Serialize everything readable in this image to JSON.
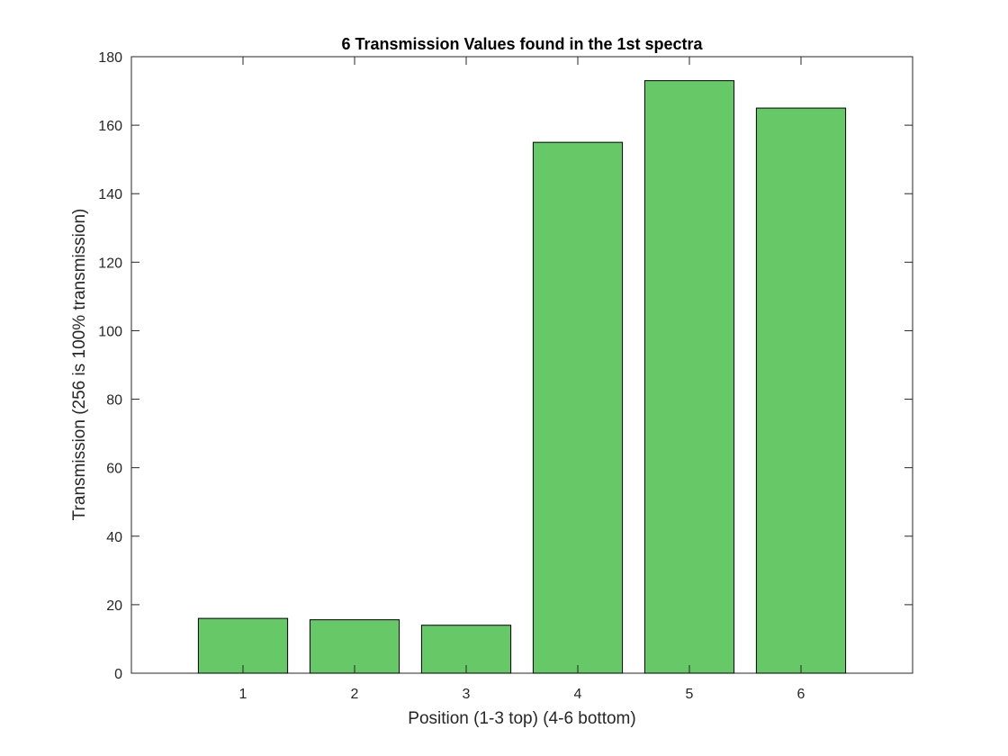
{
  "chart_data": {
    "type": "bar",
    "title": "6 Transmission Values found in the 1st spectra",
    "xlabel": "Position (1-3 top) (4-6 bottom)",
    "ylabel": "Transmission (256 is 100% transmission)",
    "categories": [
      "1",
      "2",
      "3",
      "4",
      "5",
      "6"
    ],
    "values": [
      16,
      15.6,
      14,
      155,
      173,
      165
    ],
    "ylim": [
      0,
      180
    ],
    "yticks": [
      "0",
      "20",
      "40",
      "60",
      "80",
      "100",
      "120",
      "140",
      "160",
      "180"
    ],
    "grid": false,
    "legend": "none",
    "colors": {
      "bar_fill": "#66c866",
      "bar_edge": "#000000",
      "axes": "#262626",
      "background": "#ffffff"
    }
  }
}
